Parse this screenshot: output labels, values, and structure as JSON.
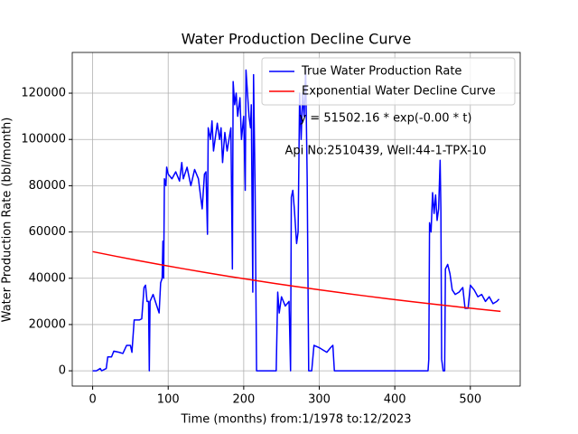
{
  "chart_data": {
    "type": "line",
    "title": "Water Production Decline Curve",
    "x_label": "Time (months) from:1/1978 to:12/2023",
    "y_label": "Water Production Rate (bbl/month)",
    "annotations": [
      "y = 51502.16 * exp(-0.00 * t)",
      "Api No:2510439, Well:44-1-TPX-10"
    ],
    "xlim": [
      -27,
      566
    ],
    "ylim": [
      -6600,
      137600
    ],
    "xticks": [
      0,
      100,
      200,
      300,
      400,
      500
    ],
    "yticks": [
      0,
      20000,
      40000,
      60000,
      80000,
      100000,
      120000
    ],
    "grid": true,
    "legend": "upper right",
    "series": [
      {
        "name": "True Water Production Rate",
        "color": "#0000ff",
        "x": [
          0,
          5,
          10,
          12,
          15,
          18,
          20,
          25,
          28,
          35,
          40,
          45,
          50,
          52,
          55,
          62,
          65,
          68,
          70,
          72,
          74,
          75,
          76,
          80,
          85,
          88,
          90,
          92,
          93,
          94,
          95,
          97,
          98,
          100,
          105,
          110,
          115,
          118,
          120,
          125,
          130,
          135,
          140,
          145,
          148,
          150,
          152,
          153,
          156,
          158,
          160,
          165,
          168,
          170,
          172,
          175,
          178,
          183,
          185,
          186,
          188,
          190,
          192,
          195,
          197,
          200,
          202,
          203,
          205,
          207,
          209,
          210,
          212,
          213,
          215,
          217,
          220,
          240,
          243,
          245,
          247,
          250,
          255,
          260,
          262,
          263,
          265,
          267,
          270,
          272,
          274,
          276,
          278,
          280,
          282,
          284,
          286,
          290,
          293,
          300,
          305,
          310,
          315,
          318,
          320,
          325,
          440,
          444,
          445,
          446,
          448,
          450,
          452,
          454,
          456,
          458,
          460,
          461,
          462,
          464,
          466,
          467,
          470,
          473,
          476,
          480,
          485,
          490,
          493,
          497,
          500,
          505,
          510,
          515,
          520,
          525,
          530,
          535,
          538
        ],
        "values": [
          0,
          0,
          1000,
          0,
          500,
          1000,
          6000,
          6000,
          8500,
          8000,
          7500,
          11000,
          11000,
          8000,
          22000,
          22000,
          22500,
          36000,
          37000,
          30000,
          30000,
          0,
          30000,
          33000,
          28000,
          25000,
          38000,
          40000,
          56000,
          40000,
          83000,
          80000,
          88000,
          85000,
          83000,
          86000,
          82000,
          90000,
          83000,
          88000,
          80000,
          87000,
          83000,
          70000,
          85000,
          86000,
          59000,
          105000,
          100000,
          108000,
          95000,
          107000,
          100000,
          105000,
          90000,
          103000,
          95000,
          105000,
          44000,
          125000,
          115000,
          120000,
          110000,
          118000,
          100000,
          110000,
          78000,
          130000,
          120000,
          110000,
          105000,
          115000,
          34000,
          128000,
          80000,
          0,
          0,
          0,
          0,
          34000,
          25000,
          32000,
          28000,
          30000,
          0,
          75000,
          78000,
          70000,
          55000,
          60000,
          120000,
          100000,
          120000,
          110000,
          130000,
          83000,
          0,
          0,
          11000,
          10000,
          9000,
          8000,
          10000,
          11000,
          0,
          0,
          0,
          0,
          5000,
          64000,
          60000,
          77000,
          68000,
          76000,
          65000,
          70000,
          91000,
          70000,
          5000,
          0,
          0,
          44000,
          46000,
          42000,
          35000,
          33000,
          34000,
          36000,
          27000,
          27000,
          37000,
          35000,
          32000,
          33000,
          30000,
          32000,
          29000,
          30000,
          31000
        ]
      },
      {
        "name": "Exponential Water Decline Curve",
        "color": "#ff0000",
        "x": [
          0,
          30,
          60,
          90,
          120,
          150,
          180,
          210,
          240,
          270,
          300,
          330,
          360,
          390,
          420,
          450,
          480,
          510,
          540
        ],
        "values": [
          51502,
          49551,
          47676,
          45868,
          44132,
          42458,
          40852,
          39306,
          37818,
          36386,
          35006,
          33683,
          32405,
          31179,
          30000,
          28862,
          27770,
          26719,
          25705
        ]
      }
    ]
  }
}
